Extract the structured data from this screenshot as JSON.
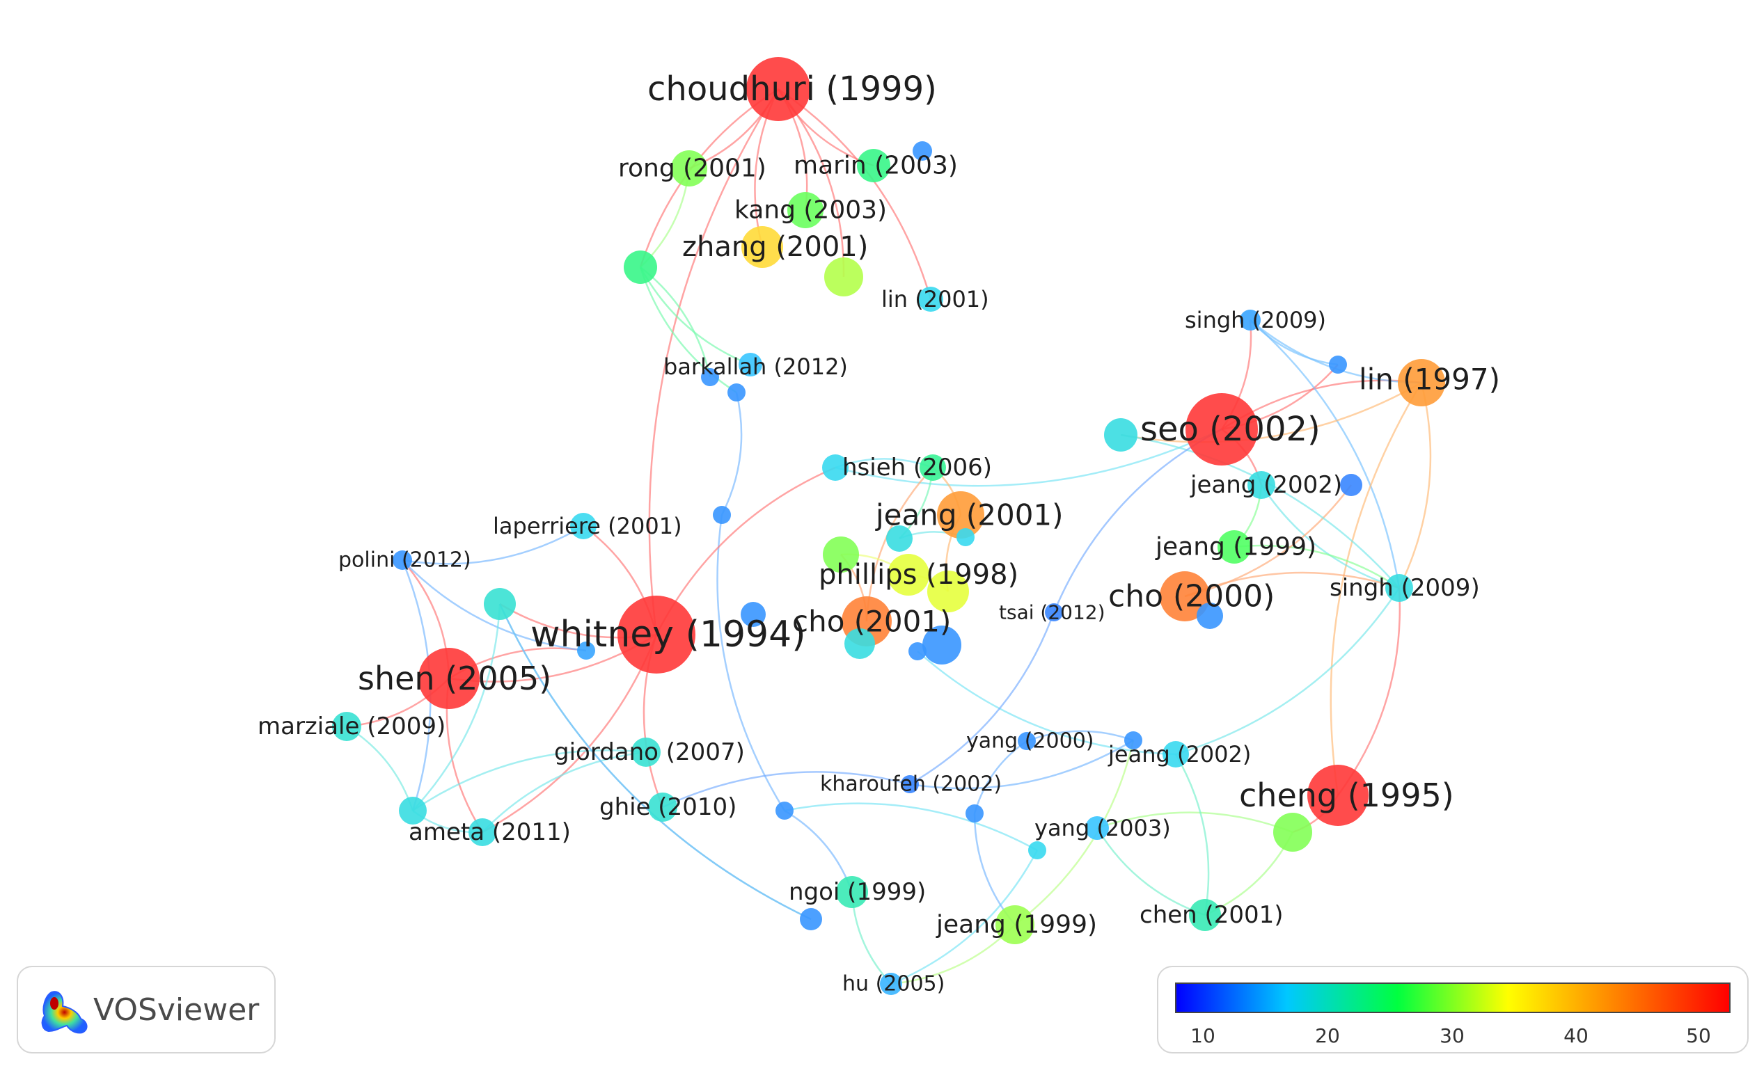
{
  "app": {
    "logo_text": "VOSviewer"
  },
  "legend": {
    "ticks": [
      "10",
      "20",
      "30",
      "40",
      "50"
    ],
    "colors": [
      "#0000ff",
      "#00c8ff",
      "#00ff40",
      "#ffff00",
      "#ff8000",
      "#ff0000"
    ]
  },
  "network": {
    "nodes": [
      {
        "id": "choudhuri1999",
        "label": "choudhuri (1999)",
        "score": 52
      },
      {
        "id": "rong2001",
        "label": "rong (2001)",
        "score": 31
      },
      {
        "id": "marin2003",
        "label": "marin (2003)",
        "score": 26
      },
      {
        "id": "kang2003",
        "label": "kang (2003)",
        "score": 30
      },
      {
        "id": "zhang2001",
        "label": "zhang (2001)",
        "score": 39
      },
      {
        "id": "lin2001",
        "label": "lin (2001)",
        "score": 19
      },
      {
        "id": "barkallah2012",
        "label": "barkallah (2012)",
        "score": 17
      },
      {
        "id": "singh2009a",
        "label": "singh (2009)",
        "score": 15
      },
      {
        "id": "lin1997",
        "label": "lin (1997)",
        "score": 44
      },
      {
        "id": "seo2002",
        "label": "seo (2002)",
        "score": 52
      },
      {
        "id": "hsieh2006",
        "label": "hsieh (2006)",
        "score": 19
      },
      {
        "id": "jeang2002a",
        "label": "jeang (2002)",
        "score": 20
      },
      {
        "id": "jeang2001",
        "label": "jeang (2001)",
        "score": 44
      },
      {
        "id": "laperriere2001",
        "label": "laperriere (2001)",
        "score": 19
      },
      {
        "id": "jeang1999a",
        "label": "jeang (1999)",
        "score": 29
      },
      {
        "id": "polini2012",
        "label": "polini (2012)",
        "score": 14
      },
      {
        "id": "phillips1998",
        "label": "phillips (1998)",
        "score": 35
      },
      {
        "id": "singh2009b",
        "label": "singh (2009)",
        "score": 20
      },
      {
        "id": "cho2000",
        "label": "cho (2000)",
        "score": 46
      },
      {
        "id": "tsai2012",
        "label": "tsai (2012)",
        "score": 13
      },
      {
        "id": "whitney1994",
        "label": "whitney (1994)",
        "score": 52
      },
      {
        "id": "cho2001",
        "label": "cho (2001)",
        "score": 46
      },
      {
        "id": "shen2005",
        "label": "shen (2005)",
        "score": 52
      },
      {
        "id": "marziale2009",
        "label": "marziale (2009)",
        "score": 21
      },
      {
        "id": "giordano2007",
        "label": "giordano (2007)",
        "score": 21
      },
      {
        "id": "yang2000",
        "label": "yang (2000)",
        "score": 14
      },
      {
        "id": "jeang2002b",
        "label": "jeang (2002)",
        "score": 19
      },
      {
        "id": "kharoufeh2002",
        "label": "kharoufeh (2002)",
        "score": 13
      },
      {
        "id": "cheng1995",
        "label": "cheng (1995)",
        "score": 52
      },
      {
        "id": "ghie2010",
        "label": "ghie (2010)",
        "score": 21
      },
      {
        "id": "ameta2011",
        "label": "ameta (2011)",
        "score": 20
      },
      {
        "id": "yang2003",
        "label": "yang (2003)",
        "score": 17
      },
      {
        "id": "ngoi1999",
        "label": "ngoi (1999)",
        "score": 23
      },
      {
        "id": "jeang1999b",
        "label": "jeang (1999)",
        "score": 32
      },
      {
        "id": "chen2001",
        "label": "chen (2001)",
        "score": 23
      },
      {
        "id": "hu2005",
        "label": "hu (2005)",
        "score": 16
      },
      {
        "id": "u_a",
        "label": "",
        "score": 26
      },
      {
        "id": "u_b",
        "label": "",
        "score": 33
      },
      {
        "id": "u_c",
        "label": "",
        "score": 14
      },
      {
        "id": "u_d",
        "label": "",
        "score": 14
      },
      {
        "id": "u_e",
        "label": "",
        "score": 14
      },
      {
        "id": "u_f",
        "label": "",
        "score": 14
      },
      {
        "id": "u_g",
        "label": "",
        "score": 21
      },
      {
        "id": "u_h",
        "label": "",
        "score": 25
      },
      {
        "id": "u_i",
        "label": "",
        "score": 20
      },
      {
        "id": "u_j",
        "label": "",
        "score": 31
      },
      {
        "id": "u_k",
        "label": "",
        "score": 35
      },
      {
        "id": "u_l",
        "label": "",
        "score": 14
      },
      {
        "id": "u_m",
        "label": "",
        "score": 20
      },
      {
        "id": "u_n",
        "label": "",
        "score": 13
      },
      {
        "id": "u_o",
        "label": "",
        "score": 14
      },
      {
        "id": "u_p",
        "label": "",
        "score": 14
      },
      {
        "id": "u_q",
        "label": "",
        "score": 14
      },
      {
        "id": "u_r",
        "label": "",
        "score": 19
      },
      {
        "id": "u_s",
        "label": "",
        "score": 15
      },
      {
        "id": "u_t",
        "label": "",
        "score": 20
      },
      {
        "id": "u_u",
        "label": "",
        "score": 14
      },
      {
        "id": "u_v",
        "label": "",
        "score": 14
      },
      {
        "id": "u_w",
        "label": "",
        "score": 19
      },
      {
        "id": "u_x",
        "label": "",
        "score": 14
      },
      {
        "id": "u_y",
        "label": "",
        "score": 14
      },
      {
        "id": "u_z",
        "label": "",
        "score": 14
      },
      {
        "id": "u_aa",
        "label": "",
        "score": 20
      },
      {
        "id": "u_ab",
        "label": "",
        "score": 14
      },
      {
        "id": "u_ac",
        "label": "",
        "score": 31
      }
    ],
    "links": [
      [
        "choudhuri1999",
        "rong2001"
      ],
      [
        "choudhuri1999",
        "marin2003"
      ],
      [
        "choudhuri1999",
        "kang2003"
      ],
      [
        "choudhuri1999",
        "zhang2001"
      ],
      [
        "choudhuri1999",
        "u_b"
      ],
      [
        "choudhuri1999",
        "u_a"
      ],
      [
        "choudhuri1999",
        "lin2001"
      ],
      [
        "choudhuri1999",
        "whitney1994"
      ],
      [
        "rong2001",
        "u_a"
      ],
      [
        "u_a",
        "barkallah2012"
      ],
      [
        "u_a",
        "u_c"
      ],
      [
        "u_a",
        "u_d"
      ],
      [
        "u_d",
        "u_e"
      ],
      [
        "u_e",
        "u_v"
      ],
      [
        "u_v",
        "ngoi1999"
      ],
      [
        "ngoi1999",
        "hu2005"
      ],
      [
        "u_w",
        "hu2005"
      ],
      [
        "u_w",
        "u_v"
      ],
      [
        "whitney1994",
        "hsieh2006"
      ],
      [
        "hsieh2006",
        "seo2002"
      ],
      [
        "hsieh2006",
        "u_h"
      ],
      [
        "seo2002",
        "singh2009a"
      ],
      [
        "seo2002",
        "lin1997"
      ],
      [
        "seo2002",
        "u_l"
      ],
      [
        "seo2002",
        "jeang2002a"
      ],
      [
        "singh2009a",
        "lin1997"
      ],
      [
        "singh2009a",
        "singh2009b"
      ],
      [
        "singh2009a",
        "u_l"
      ],
      [
        "lin1997",
        "singh2009b"
      ],
      [
        "lin1997",
        "cheng1995"
      ],
      [
        "lin1997",
        "u_m"
      ],
      [
        "jeang2002a",
        "singh2009b"
      ],
      [
        "jeang1999a",
        "singh2009b"
      ],
      [
        "jeang1999a",
        "jeang2002a"
      ],
      [
        "cho2000",
        "singh2009b"
      ],
      [
        "cho2000",
        "u_n"
      ],
      [
        "singh2009b",
        "jeang2002b"
      ],
      [
        "singh2009b",
        "u_m"
      ],
      [
        "cheng1995",
        "u_ac"
      ],
      [
        "cheng1995",
        "singh2009b"
      ],
      [
        "u_ac",
        "chen2001"
      ],
      [
        "u_ac",
        "yang2003"
      ],
      [
        "chen2001",
        "yang2003"
      ],
      [
        "chen2001",
        "jeang2002b"
      ],
      [
        "jeang2002b",
        "u_y"
      ],
      [
        "yang2000",
        "u_x"
      ],
      [
        "yang2000",
        "u_z"
      ],
      [
        "u_x",
        "jeang1999b"
      ],
      [
        "jeang1999b",
        "hu2005"
      ],
      [
        "jeang1999b",
        "u_z"
      ],
      [
        "u_z",
        "kharoufeh2002"
      ],
      [
        "kharoufeh2002",
        "tsai2012"
      ],
      [
        "tsai2012",
        "seo2002"
      ],
      [
        "kharoufeh2002",
        "ghie2010"
      ],
      [
        "whitney1994",
        "shen2005"
      ],
      [
        "whitney1994",
        "laperriere2001"
      ],
      [
        "whitney1994",
        "u_g"
      ],
      [
        "whitney1994",
        "ghie2010"
      ],
      [
        "whitney1994",
        "ameta2011"
      ],
      [
        "shen2005",
        "polini2012"
      ],
      [
        "shen2005",
        "marziale2009"
      ],
      [
        "shen2005",
        "ameta2011"
      ],
      [
        "shen2005",
        "u_s"
      ],
      [
        "polini2012",
        "laperriere2001"
      ],
      [
        "polini2012",
        "u_t"
      ],
      [
        "polini2012",
        "u_s"
      ],
      [
        "marziale2009",
        "u_t"
      ],
      [
        "u_t",
        "ameta2011"
      ],
      [
        "u_t",
        "giordano2007"
      ],
      [
        "u_t",
        "u_g"
      ],
      [
        "ameta2011",
        "giordano2007"
      ],
      [
        "u_g",
        "u_u"
      ],
      [
        "u_u",
        "u_g"
      ],
      [
        "jeang2001",
        "u_h"
      ],
      [
        "cho2001",
        "u_h"
      ],
      [
        "phillips1998",
        "u_j"
      ],
      [
        "phillips1998",
        "u_k"
      ],
      [
        "cho2001",
        "u_j"
      ],
      [
        "u_h",
        "u_i"
      ],
      [
        "jeang2001",
        "u_k"
      ],
      [
        "u_i",
        "u_r"
      ]
    ]
  }
}
